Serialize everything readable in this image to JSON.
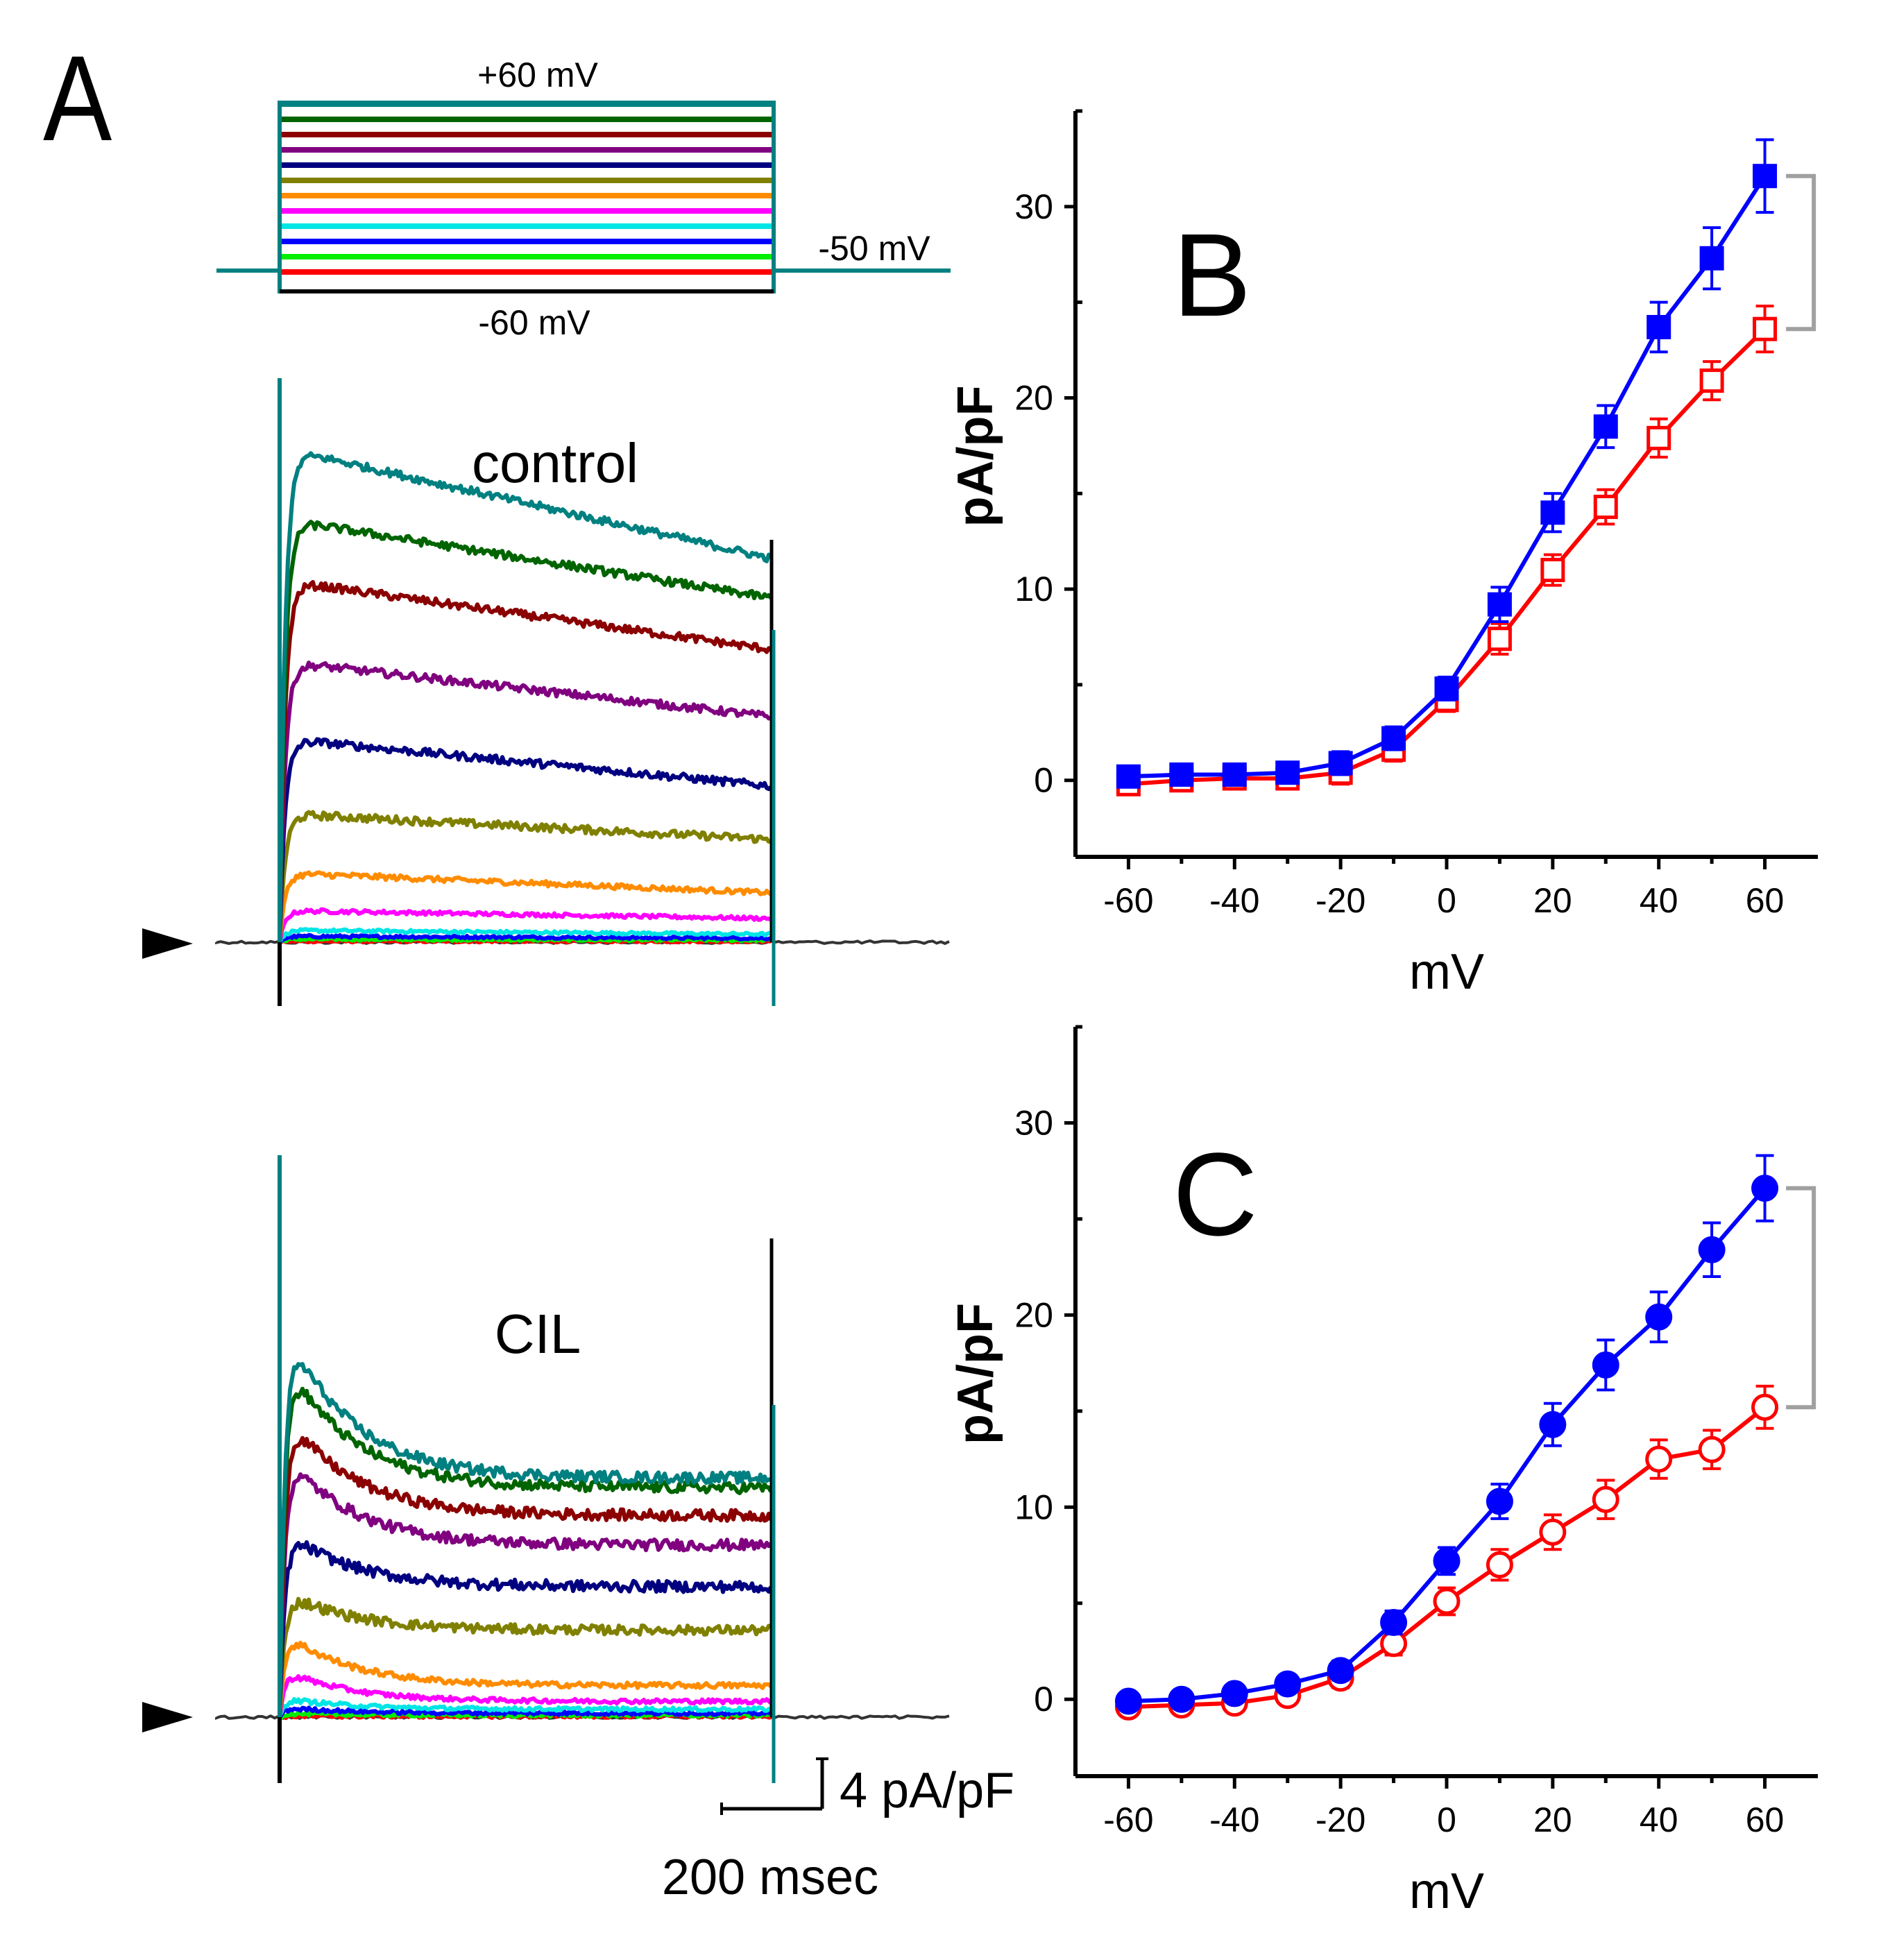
{
  "panel_labels": {
    "a": "A",
    "b": "B",
    "c": "C"
  },
  "protocol": {
    "top_label": "+60 mV",
    "bottom_label": "-60 mV",
    "holding_label": "-50 mV",
    "step_colors": [
      "#ff0000",
      "#00ee00",
      "#0000ff",
      "#00e5e5",
      "#ff00ff",
      "#ff8c00",
      "#808000",
      "#000080",
      "#800080",
      "#8b0000",
      "#006400",
      "#008080"
    ]
  },
  "traces": {
    "control": {
      "label": "control",
      "steady_levels": [
        0.05,
        0.1,
        0.2,
        0.4,
        1.2,
        2.5,
        5.2,
        7.9,
        11.4,
        14.8,
        17.4,
        19.4
      ],
      "peak_levels": [
        0.05,
        0.15,
        0.3,
        0.6,
        1.6,
        3.5,
        6.5,
        10.3,
        14.2,
        18.3,
        21.4,
        25.0
      ]
    },
    "cil": {
      "label": "CIL",
      "steady_levels": [
        0.05,
        0.1,
        0.2,
        0.4,
        0.8,
        1.6,
        4.4,
        6.6,
        8.7,
        10.2,
        11.6,
        12.1
      ],
      "peak_levels": [
        0.05,
        0.2,
        0.5,
        1.0,
        2.5,
        4.5,
        6.5,
        9.7,
        13.8,
        15.9,
        18.8,
        20.5
      ]
    },
    "scalebar": {
      "y_label": "4 pA/pF",
      "x_label": "200 msec"
    }
  },
  "chart_data": [
    {
      "panel": "B",
      "type": "line",
      "title": "",
      "xlabel": "mV",
      "ylabel": "pA/pF",
      "xlim": [
        -70,
        70
      ],
      "ylim": [
        -4,
        35
      ],
      "xticks": [
        -60,
        -40,
        -20,
        0,
        20,
        40,
        60
      ],
      "yticks": [
        0,
        10,
        20,
        30
      ],
      "x": [
        -60,
        -50,
        -40,
        -30,
        -20,
        -10,
        0,
        10,
        20,
        30,
        40,
        50,
        60
      ],
      "series": [
        {
          "name": "control",
          "color": "#0000ff",
          "marker": "square",
          "filled": true,
          "values": [
            0.2,
            0.3,
            0.3,
            0.4,
            0.9,
            2.2,
            4.8,
            9.2,
            14.0,
            18.5,
            23.7,
            27.3,
            31.6
          ],
          "errors": [
            0.5,
            0.5,
            0.5,
            0.5,
            0.6,
            0.6,
            0.6,
            0.9,
            1.0,
            1.1,
            1.3,
            1.6,
            1.9
          ]
        },
        {
          "name": "CIL",
          "color": "#ff0000",
          "marker": "square",
          "filled": false,
          "values": [
            -0.2,
            0.0,
            0.1,
            0.1,
            0.4,
            1.6,
            4.2,
            7.4,
            11.0,
            14.3,
            17.9,
            20.9,
            23.6
          ],
          "errors": [
            0.5,
            0.5,
            0.5,
            0.5,
            0.6,
            0.6,
            0.6,
            0.8,
            0.8,
            0.9,
            1.0,
            1.0,
            1.2
          ]
        }
      ],
      "bracket": [
        23.6,
        31.6
      ]
    },
    {
      "panel": "C",
      "type": "line",
      "title": "",
      "xlabel": "mV",
      "ylabel": "pA/pF",
      "xlim": [
        -70,
        70
      ],
      "ylim": [
        -4,
        35
      ],
      "xticks": [
        -60,
        -40,
        -20,
        0,
        20,
        40,
        60
      ],
      "yticks": [
        0,
        10,
        20,
        30
      ],
      "x": [
        -60,
        -50,
        -40,
        -30,
        -20,
        -10,
        0,
        10,
        20,
        30,
        40,
        50,
        60
      ],
      "series": [
        {
          "name": "control",
          "color": "#0000ff",
          "marker": "circle",
          "filled": true,
          "values": [
            -0.1,
            0.0,
            0.3,
            0.8,
            1.5,
            4.0,
            7.2,
            10.3,
            14.3,
            17.4,
            19.9,
            23.4,
            26.6
          ],
          "errors": [
            0.4,
            0.4,
            0.4,
            0.4,
            0.5,
            0.6,
            0.7,
            0.9,
            1.1,
            1.3,
            1.3,
            1.4,
            1.7
          ]
        },
        {
          "name": "CIL",
          "color": "#ff0000",
          "marker": "circle",
          "filled": false,
          "values": [
            -0.4,
            -0.3,
            -0.2,
            0.2,
            1.1,
            2.9,
            5.1,
            7.0,
            8.7,
            10.4,
            12.5,
            13.0,
            15.2
          ],
          "errors": [
            0.4,
            0.4,
            0.4,
            0.4,
            0.5,
            0.6,
            0.7,
            0.8,
            0.9,
            1.0,
            1.0,
            1.0,
            1.1
          ]
        }
      ],
      "bracket": [
        15.2,
        26.6
      ]
    }
  ]
}
